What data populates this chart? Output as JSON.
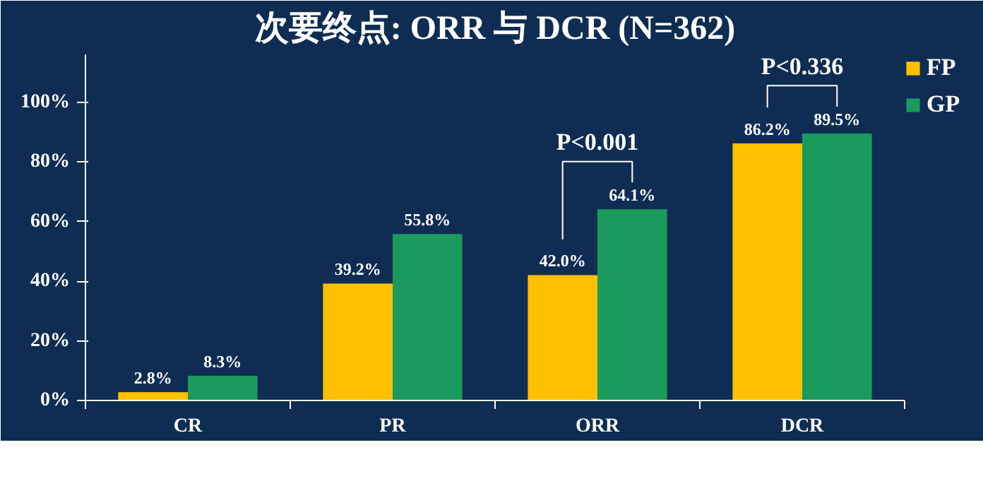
{
  "chart_data": {
    "type": "bar",
    "title": "次要终点: ORR 与 DCR (N=362)",
    "categories": [
      "CR",
      "PR",
      "ORR",
      "DCR"
    ],
    "series": [
      {
        "name": "FP",
        "color": "#ffc000",
        "values": [
          2.8,
          39.2,
          42.0,
          86.2
        ]
      },
      {
        "name": "GP",
        "color": "#1a9a5c",
        "values": [
          8.3,
          55.8,
          64.1,
          89.5
        ]
      }
    ],
    "value_labels": [
      [
        "2.8%",
        "39.2%",
        "42.0%",
        "86.2%"
      ],
      [
        "8.3%",
        "55.8%",
        "64.1%",
        "89.5%"
      ]
    ],
    "ylim": [
      0,
      116
    ],
    "yticks": [
      {
        "value": 0,
        "label": "0%"
      },
      {
        "value": 20,
        "label": "20%"
      },
      {
        "value": 40,
        "label": "40%"
      },
      {
        "value": 60,
        "label": "60%"
      },
      {
        "value": 80,
        "label": "80%"
      },
      {
        "value": 100,
        "label": "100%"
      }
    ],
    "annotations": [
      {
        "text": "P<0.001",
        "x": "ORR",
        "y": 64.1
      },
      {
        "text": "P<0.336",
        "x": "DCR",
        "y": 89.5
      }
    ],
    "grid": false,
    "legend": "top right"
  }
}
